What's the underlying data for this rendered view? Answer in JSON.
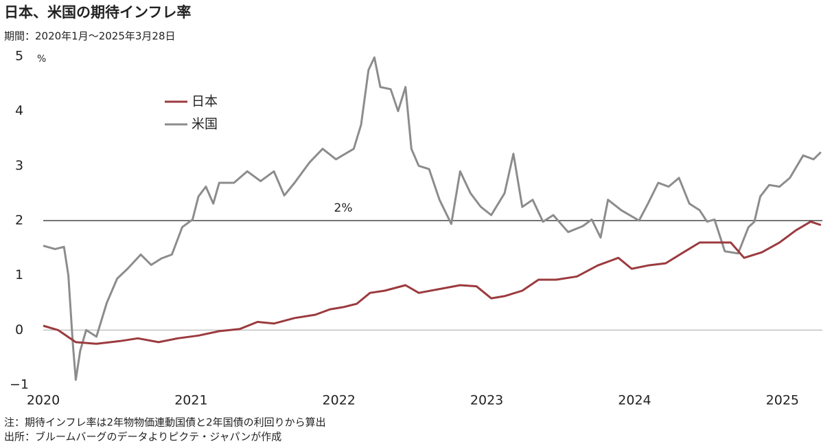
{
  "chart_data": {
    "type": "line",
    "title": "日本、米国の期待インフレ率",
    "subtitle": "期間：2020年1月～2025年3月28日",
    "y_unit": "%",
    "notes": [
      "注：期待インフレ率は2年物物価連動国債と2年国債の利回りから算出",
      "出所：ブルームバーグのデータよりピクテ・ジャパンが作成"
    ],
    "xlim": [
      2020,
      2025.27
    ],
    "xticks": [
      2020,
      2021,
      2022,
      2023,
      2024,
      2025
    ],
    "ylim": [
      -1,
      5
    ],
    "yticks": [
      {
        "value": -1,
        "label": "−1"
      },
      0,
      1,
      2,
      3,
      4,
      5
    ],
    "reference_lines": [
      {
        "value": 0,
        "color": "#b0b0b0"
      },
      {
        "value": 2,
        "label": "2%",
        "color": "#222222"
      }
    ],
    "series": [
      {
        "name": "日本",
        "color": "#9b3a3e",
        "x": [
          2020.0,
          2020.1,
          2020.22,
          2020.36,
          2020.52,
          2020.64,
          2020.78,
          2020.91,
          2021.05,
          2021.19,
          2021.33,
          2021.45,
          2021.56,
          2021.7,
          2021.84,
          2021.94,
          2022.03,
          2022.12,
          2022.21,
          2022.31,
          2022.45,
          2022.54,
          2022.68,
          2022.82,
          2022.93,
          2023.03,
          2023.12,
          2023.24,
          2023.35,
          2023.47,
          2023.61,
          2023.75,
          2023.89,
          2023.98,
          2024.09,
          2024.21,
          2024.33,
          2024.44,
          2024.56,
          2024.65,
          2024.74,
          2024.86,
          2024.98,
          2025.09,
          2025.19,
          2025.26
        ],
        "values": [
          0.08,
          0.0,
          -0.22,
          -0.25,
          -0.2,
          -0.15,
          -0.22,
          -0.15,
          -0.1,
          -0.02,
          0.02,
          0.15,
          0.12,
          0.22,
          0.28,
          0.38,
          0.42,
          0.48,
          0.68,
          0.72,
          0.82,
          0.68,
          0.75,
          0.82,
          0.8,
          0.58,
          0.62,
          0.72,
          0.92,
          0.92,
          0.98,
          1.18,
          1.32,
          1.12,
          1.18,
          1.22,
          1.42,
          1.6,
          1.6,
          1.6,
          1.32,
          1.42,
          1.6,
          1.82,
          1.98,
          1.92
        ]
      },
      {
        "name": "米国",
        "color": "#8c8c8c",
        "x": [
          2020.0,
          2020.08,
          2020.14,
          2020.17,
          2020.2,
          2020.22,
          2020.25,
          2020.29,
          2020.36,
          2020.43,
          2020.5,
          2020.57,
          2020.66,
          2020.73,
          2020.8,
          2020.87,
          2020.94,
          2021.01,
          2021.05,
          2021.1,
          2021.15,
          2021.19,
          2021.29,
          2021.38,
          2021.47,
          2021.56,
          2021.63,
          2021.7,
          2021.8,
          2021.89,
          2021.98,
          2022.1,
          2022.15,
          2022.2,
          2022.24,
          2022.28,
          2022.35,
          2022.4,
          2022.45,
          2022.49,
          2022.54,
          2022.61,
          2022.68,
          2022.76,
          2022.82,
          2022.89,
          2022.96,
          2023.03,
          2023.12,
          2023.18,
          2023.24,
          2023.31,
          2023.38,
          2023.45,
          2023.55,
          2023.65,
          2023.71,
          2023.77,
          2023.82,
          2023.91,
          2024.03,
          2024.09,
          2024.16,
          2024.23,
          2024.3,
          2024.37,
          2024.44,
          2024.49,
          2024.54,
          2024.61,
          2024.7,
          2024.77,
          2024.81,
          2024.85,
          2024.91,
          2024.98,
          2025.05,
          2025.14,
          2025.21,
          2025.26
        ],
        "values": [
          1.54,
          1.48,
          1.52,
          1.0,
          -0.25,
          -0.91,
          -0.38,
          0.0,
          -0.12,
          0.5,
          0.94,
          1.12,
          1.38,
          1.19,
          1.31,
          1.38,
          1.88,
          2.02,
          2.44,
          2.62,
          2.31,
          2.69,
          2.69,
          2.9,
          2.72,
          2.9,
          2.46,
          2.69,
          3.06,
          3.31,
          3.12,
          3.31,
          3.75,
          4.75,
          4.98,
          4.44,
          4.4,
          4.0,
          4.44,
          3.31,
          3.0,
          2.94,
          2.38,
          1.94,
          2.9,
          2.5,
          2.25,
          2.1,
          2.5,
          3.22,
          2.25,
          2.38,
          1.98,
          2.1,
          1.79,
          1.9,
          2.02,
          1.69,
          2.38,
          2.19,
          2.0,
          2.31,
          2.69,
          2.62,
          2.78,
          2.31,
          2.19,
          1.98,
          2.02,
          1.44,
          1.4,
          1.88,
          1.98,
          2.44,
          2.65,
          2.62,
          2.78,
          3.19,
          3.12,
          3.25
        ]
      }
    ]
  }
}
